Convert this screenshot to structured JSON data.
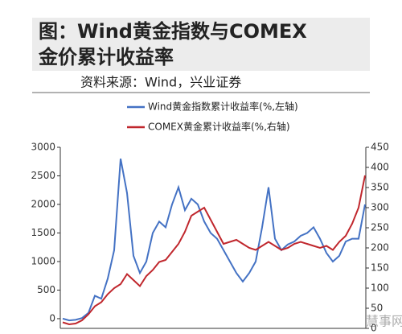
{
  "chart_data": {
    "type": "line",
    "title": [
      "图：Wind黄金指数与COMEX",
      "金价累计收益率"
    ],
    "subtitle": "资料来源：Wind，兴业证券",
    "watermark": "慧事网",
    "series": [
      {
        "name": "Wind黄金指数累计收益率(%,左轴)",
        "color": "#4472c4",
        "axis": "y",
        "values": [
          0,
          -30,
          -20,
          10,
          100,
          400,
          350,
          700,
          1200,
          2800,
          2200,
          1100,
          800,
          1000,
          1500,
          1700,
          1600,
          2000,
          2300,
          1900,
          2100,
          2000,
          1700,
          1500,
          1400,
          1200,
          1000,
          800,
          650,
          800,
          1000,
          1600,
          2300,
          1400,
          1200,
          1300,
          1350,
          1450,
          1500,
          1600,
          1400,
          1150,
          1000,
          1100,
          1350,
          1400,
          1400,
          2000
        ]
      },
      {
        "name": "COMEX黄金累计收益率(%,右轴)",
        "color": "#c0272d",
        "axis": "y2",
        "values": [
          15,
          10,
          12,
          20,
          35,
          55,
          65,
          85,
          100,
          110,
          135,
          120,
          105,
          130,
          145,
          165,
          170,
          190,
          210,
          240,
          280,
          290,
          300,
          270,
          240,
          210,
          215,
          220,
          210,
          200,
          195,
          205,
          215,
          205,
          195,
          200,
          210,
          215,
          210,
          205,
          200,
          205,
          195,
          215,
          230,
          260,
          300,
          380
        ]
      }
    ],
    "ylim": [
      -170,
      3000
    ],
    "yticks": [
      0,
      500,
      1000,
      1500,
      2000,
      2500,
      3000
    ],
    "y2lim": [
      0,
      450
    ],
    "y2ticks": [
      0,
      50,
      100,
      150,
      200,
      250,
      300,
      350,
      400,
      450
    ]
  }
}
